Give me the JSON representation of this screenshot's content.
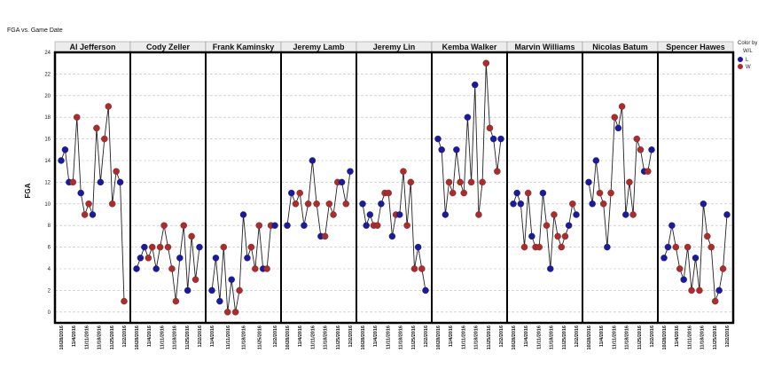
{
  "chart_data": {
    "type": "scatter",
    "title": "FGA vs. Game Date",
    "ylabel": "FGA",
    "ylim": [
      -1,
      24
    ],
    "yticks": [
      0,
      2,
      4,
      6,
      8,
      10,
      12,
      14,
      16,
      18,
      20,
      22,
      24
    ],
    "grid": true,
    "legend": {
      "title": "Color by",
      "subtitle": "W/L",
      "placement": "right",
      "entries": [
        {
          "key": "L",
          "label": "L",
          "color": "#1a1aa0"
        },
        {
          "key": "W",
          "label": "W",
          "color": "#b02a2a"
        }
      ]
    },
    "panels": [
      {
        "name": "Al Jefferson",
        "values": [
          14,
          15,
          12,
          12,
          18,
          11,
          9,
          10,
          9,
          17,
          12,
          16,
          19,
          10,
          13,
          12,
          1
        ],
        "results": [
          "L",
          "L",
          "L",
          "W",
          "W",
          "L",
          "W",
          "W",
          "L",
          "W",
          "L",
          "W",
          "W",
          "W",
          "W",
          "L",
          "W"
        ],
        "xticks": [
          "10/28/2016",
          "11/4/2016",
          "11/11/2016",
          "11/18/2016",
          "11/25/2016",
          "12/2/2016"
        ]
      },
      {
        "name": "Cody Zeller",
        "values": [
          4,
          5,
          6,
          5,
          6,
          4,
          6,
          8,
          6,
          4,
          1,
          5,
          8,
          2,
          7,
          3,
          6
        ],
        "results": [
          "L",
          "L",
          "L",
          "W",
          "W",
          "L",
          "W",
          "W",
          "W",
          "W",
          "W",
          "L",
          "W",
          "L",
          "W",
          "W",
          "L"
        ],
        "xticks": [
          "10/28/2016",
          "11/4/2016",
          "11/11/2016",
          "11/18/2016",
          "11/25/2016",
          "12/2/2016"
        ]
      },
      {
        "name": "Frank Kaminsky",
        "values": [
          2,
          5,
          1,
          6,
          0,
          3,
          0,
          2,
          9,
          5,
          6,
          4,
          8,
          4,
          4,
          8,
          8
        ],
        "results": [
          "L",
          "L",
          "L",
          "W",
          "W",
          "L",
          "W",
          "W",
          "L",
          "L",
          "W",
          "W",
          "W",
          "L",
          "W",
          "W",
          "L"
        ],
        "xticks": [
          "11/4/2016",
          "11/11/2016",
          "11/18/2016",
          "11/25/2016",
          "12/2/2016"
        ]
      },
      {
        "name": "Jeremy Lamb",
        "values": [
          8,
          11,
          10,
          11,
          8,
          10,
          14,
          10,
          7,
          7,
          10,
          9,
          12,
          12,
          10,
          13
        ],
        "results": [
          "L",
          "L",
          "W",
          "W",
          "L",
          "W",
          "L",
          "W",
          "L",
          "W",
          "W",
          "W",
          "W",
          "L",
          "W",
          "L"
        ],
        "xticks": [
          "10/28/2016",
          "11/4/2016",
          "11/11/2016",
          "11/18/2016",
          "11/25/2016",
          "12/2/2016"
        ]
      },
      {
        "name": "Jeremy Lin",
        "values": [
          10,
          8,
          9,
          8,
          8,
          10,
          11,
          11,
          7,
          9,
          9,
          13,
          8,
          12,
          4,
          6,
          4,
          2
        ],
        "results": [
          "L",
          "L",
          "L",
          "W",
          "W",
          "L",
          "W",
          "W",
          "L",
          "W",
          "L",
          "W",
          "W",
          "W",
          "W",
          "L",
          "W",
          "L"
        ],
        "xticks": [
          "10/28/2016",
          "11/4/2016",
          "11/11/2016",
          "11/18/2016",
          "11/25/2016",
          "12/2/2016"
        ]
      },
      {
        "name": "Kemba Walker",
        "values": [
          16,
          15,
          9,
          12,
          11,
          15,
          12,
          11,
          18,
          12,
          21,
          9,
          12,
          23,
          17,
          16,
          13,
          16
        ],
        "results": [
          "L",
          "L",
          "L",
          "W",
          "W",
          "L",
          "W",
          "W",
          "L",
          "W",
          "L",
          "W",
          "W",
          "W",
          "W",
          "L",
          "W",
          "L"
        ],
        "xticks": [
          "10/28/2016",
          "11/4/2016",
          "11/11/2016",
          "11/18/2016",
          "11/25/2016",
          "12/2/2016"
        ]
      },
      {
        "name": "Marvin Williams",
        "values": [
          10,
          11,
          10,
          6,
          11,
          7,
          6,
          6,
          11,
          8,
          4,
          9,
          7,
          6,
          7,
          8,
          10,
          9
        ],
        "results": [
          "L",
          "L",
          "L",
          "W",
          "W",
          "L",
          "W",
          "W",
          "L",
          "W",
          "L",
          "W",
          "W",
          "W",
          "W",
          "L",
          "W",
          "L"
        ],
        "xticks": [
          "10/28/2016",
          "11/4/2016",
          "11/11/2016",
          "11/18/2016",
          "11/25/2016",
          "12/2/2016"
        ]
      },
      {
        "name": "Nicolas Batum",
        "values": [
          12,
          10,
          14,
          11,
          10,
          6,
          11,
          18,
          17,
          19,
          9,
          12,
          9,
          16,
          15,
          13,
          13,
          15
        ],
        "results": [
          "L",
          "L",
          "L",
          "W",
          "W",
          "L",
          "W",
          "W",
          "L",
          "W",
          "L",
          "W",
          "W",
          "W",
          "W",
          "L",
          "W",
          "L"
        ],
        "xticks": [
          "10/28/2016",
          "11/4/2016",
          "11/11/2016",
          "11/18/2016",
          "11/25/2016",
          "12/2/2016"
        ]
      },
      {
        "name": "Spencer Hawes",
        "values": [
          5,
          6,
          8,
          6,
          4,
          3,
          6,
          2,
          5,
          2,
          10,
          7,
          6,
          1,
          2,
          4,
          9
        ],
        "results": [
          "L",
          "L",
          "L",
          "W",
          "W",
          "L",
          "W",
          "W",
          "L",
          "W",
          "L",
          "W",
          "W",
          "W",
          "L",
          "W",
          "L"
        ],
        "xticks": [
          "10/28/2016",
          "11/4/2016",
          "11/11/2016",
          "11/18/2016",
          "11/25/2016",
          "12/2/2016"
        ]
      }
    ]
  }
}
